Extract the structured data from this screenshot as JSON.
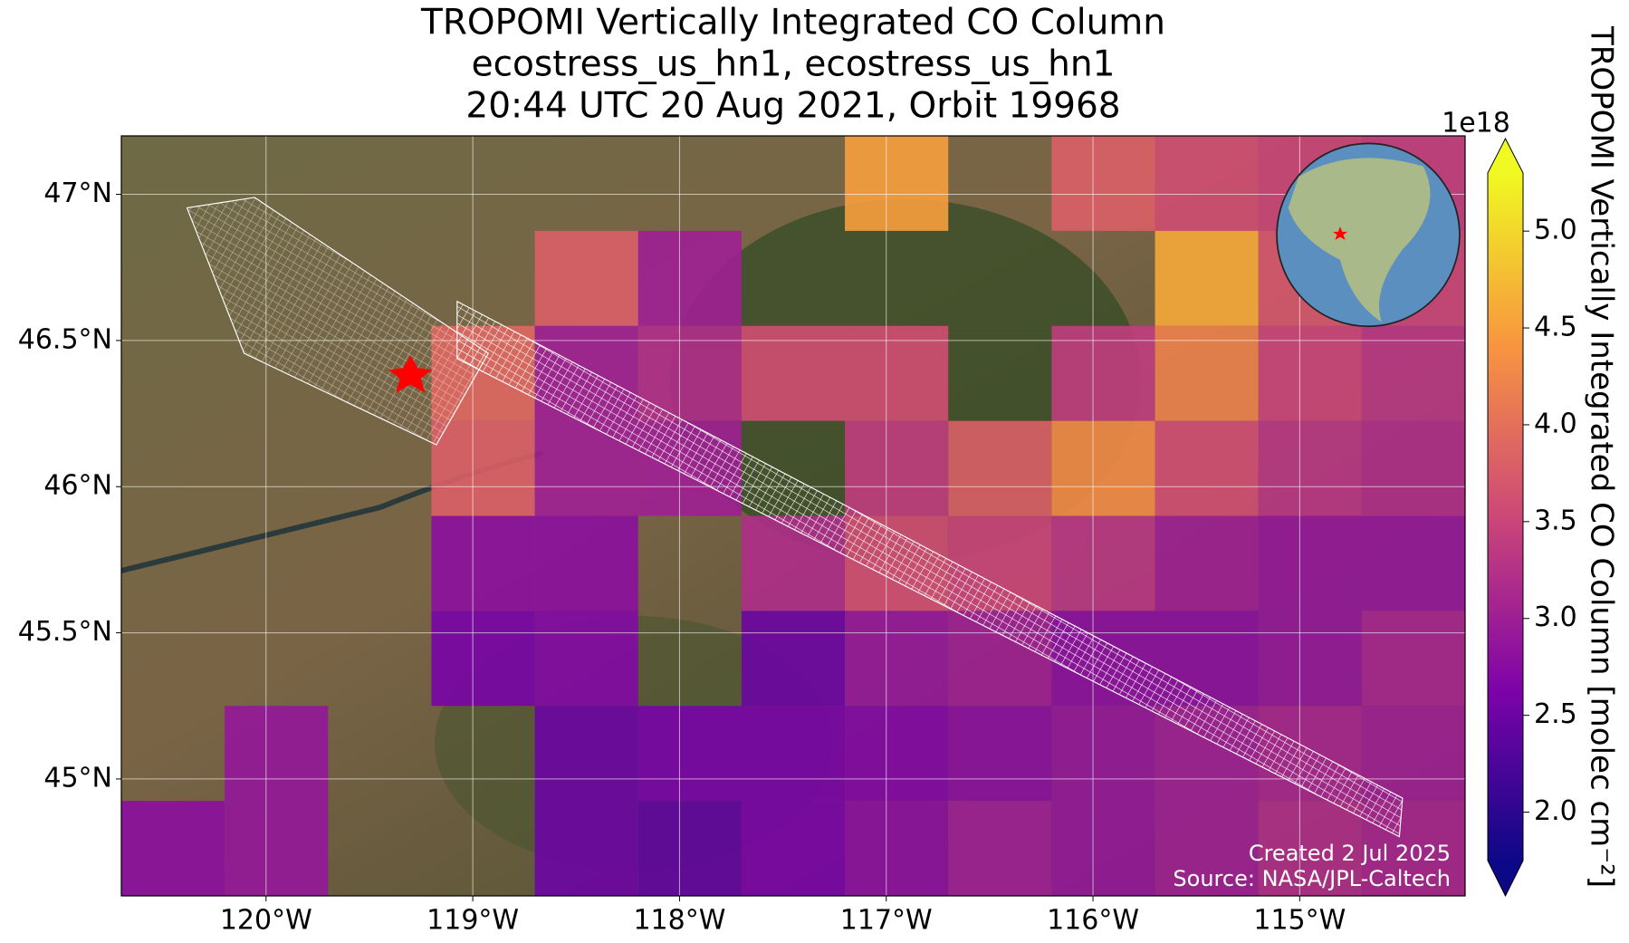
{
  "chart_data": {
    "type": "heatmap",
    "title": [
      "TROPOMI Vertically Integrated CO Column",
      "ecostress_us_hn1, ecostress_us_hn1",
      "20:44 UTC 20 Aug 2021, Orbit 19968"
    ],
    "xlim": [
      -120.7,
      -114.2
    ],
    "ylim": [
      44.6,
      47.2
    ],
    "xticks": [
      {
        "value": -120,
        "label": "120°W"
      },
      {
        "value": -119,
        "label": "119°W"
      },
      {
        "value": -118,
        "label": "118°W"
      },
      {
        "value": -117,
        "label": "117°W"
      },
      {
        "value": -116,
        "label": "116°W"
      },
      {
        "value": -115,
        "label": "115°W"
      }
    ],
    "yticks": [
      {
        "value": 45,
        "label": "45°N"
      },
      {
        "value": 45.5,
        "label": "45.5°N"
      },
      {
        "value": 46,
        "label": "46°N"
      },
      {
        "value": 46.5,
        "label": "46.5°N"
      },
      {
        "value": 47,
        "label": "47°N"
      }
    ],
    "grid": true,
    "colormap": "plasma",
    "x_edges": [
      -120.7,
      -120.2,
      -119.7,
      -119.2,
      -118.7,
      -118.2,
      -117.7,
      -117.2,
      -116.7,
      -116.2,
      -115.7,
      -115.2,
      -114.7,
      -114.2
    ],
    "y_edges": [
      47.2,
      46.875,
      46.55,
      46.225,
      45.9,
      45.575,
      45.25,
      44.925,
      44.6
    ],
    "values": [
      [
        null,
        null,
        null,
        null,
        null,
        null,
        null,
        4.5,
        null,
        3.8,
        3.6,
        3.5,
        3.4
      ],
      [
        null,
        null,
        null,
        null,
        3.8,
        3.0,
        null,
        null,
        null,
        null,
        4.6,
        3.7,
        3.5
      ],
      [
        null,
        null,
        null,
        3.9,
        3.0,
        3.2,
        3.6,
        3.6,
        null,
        3.4,
        4.2,
        3.5,
        3.3
      ],
      [
        null,
        null,
        null,
        3.8,
        3.0,
        3.0,
        null,
        3.4,
        3.8,
        4.3,
        3.6,
        3.3,
        3.2
      ],
      [
        null,
        null,
        null,
        2.8,
        2.8,
        null,
        3.2,
        3.6,
        3.5,
        3.3,
        3.0,
        2.9,
        2.9
      ],
      [
        null,
        null,
        null,
        2.6,
        2.7,
        null,
        2.5,
        2.9,
        3.0,
        2.8,
        2.8,
        2.9,
        3.1
      ],
      [
        null,
        2.9,
        null,
        null,
        2.5,
        2.6,
        2.6,
        2.7,
        2.8,
        2.9,
        3.0,
        3.1,
        3.0
      ],
      [
        2.8,
        2.9,
        null,
        null,
        2.5,
        2.4,
        2.6,
        2.8,
        3.0,
        2.9,
        3.0,
        3.2,
        3.1
      ]
    ],
    "colorbar": {
      "label": "TROPOMI Vertically Integrated CO Column [molec cm⁻²]",
      "exponent": "1e18",
      "lim": [
        1.75,
        5.3
      ],
      "ticks": [
        {
          "value": 2.0,
          "label": "2.0"
        },
        {
          "value": 2.5,
          "label": "2.5"
        },
        {
          "value": 3.0,
          "label": "3.0"
        },
        {
          "value": 3.5,
          "label": "3.5"
        },
        {
          "value": 4.0,
          "label": "4.0"
        },
        {
          "value": 4.5,
          "label": "4.5"
        },
        {
          "value": 5.0,
          "label": "5.0"
        }
      ]
    },
    "annotations": [
      "Created 2 Jul 2025",
      "Source: NASA/JPL-Caltech"
    ]
  }
}
